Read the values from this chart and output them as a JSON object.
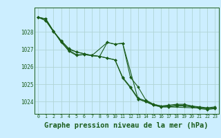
{
  "background_color": "#cceeff",
  "grid_color": "#b0d4d4",
  "line_color": "#1a5c1a",
  "marker_color": "#1a5c1a",
  "xlabel": "Graphe pression niveau de la mer (hPa)",
  "xlabel_fontsize": 7.5,
  "ytick_values": [
    1024,
    1025,
    1026,
    1027,
    1028
  ],
  "ylim": [
    1023.3,
    1029.4
  ],
  "xlim": [
    -0.5,
    23.5
  ],
  "series1": [
    1028.85,
    1028.75,
    1028.05,
    1027.5,
    1027.05,
    1026.85,
    1026.75,
    1026.65,
    1026.6,
    1027.4,
    1027.3,
    1027.35,
    1025.4,
    1024.85,
    1024.1,
    1023.85,
    1023.75,
    1023.8,
    1023.85,
    1023.85,
    1023.75,
    1023.7,
    1023.65,
    1023.7
  ],
  "series2": [
    1028.85,
    1028.75,
    1028.05,
    1027.4,
    1026.95,
    1026.7,
    1026.7,
    1026.65,
    1026.6,
    1026.5,
    1026.4,
    1025.4,
    1024.85,
    1024.2,
    1024.05,
    1023.85,
    1023.75,
    1023.75,
    1023.8,
    1023.8,
    1023.75,
    1023.65,
    1023.6,
    1023.65
  ],
  "series3": [
    1028.85,
    1028.65,
    1028.0,
    1027.5,
    1027.0,
    1026.85,
    1026.75,
    1026.65,
    1026.6,
    1026.5,
    1026.4,
    1025.35,
    1024.8,
    1024.15,
    1024.0,
    1023.8,
    1023.7,
    1023.7,
    1023.75,
    1023.75,
    1023.7,
    1023.6,
    1023.55,
    1023.6
  ],
  "series4_x": [
    0,
    1,
    3,
    4,
    5,
    6,
    7,
    9,
    10,
    11,
    13,
    14,
    15,
    16,
    17,
    23
  ],
  "series4": [
    1028.85,
    1028.65,
    1027.45,
    1026.9,
    1026.65,
    1026.7,
    1026.65,
    1027.4,
    1027.3,
    1027.35,
    1024.15,
    1024.0,
    1023.8,
    1023.7,
    1023.7,
    1023.6
  ]
}
